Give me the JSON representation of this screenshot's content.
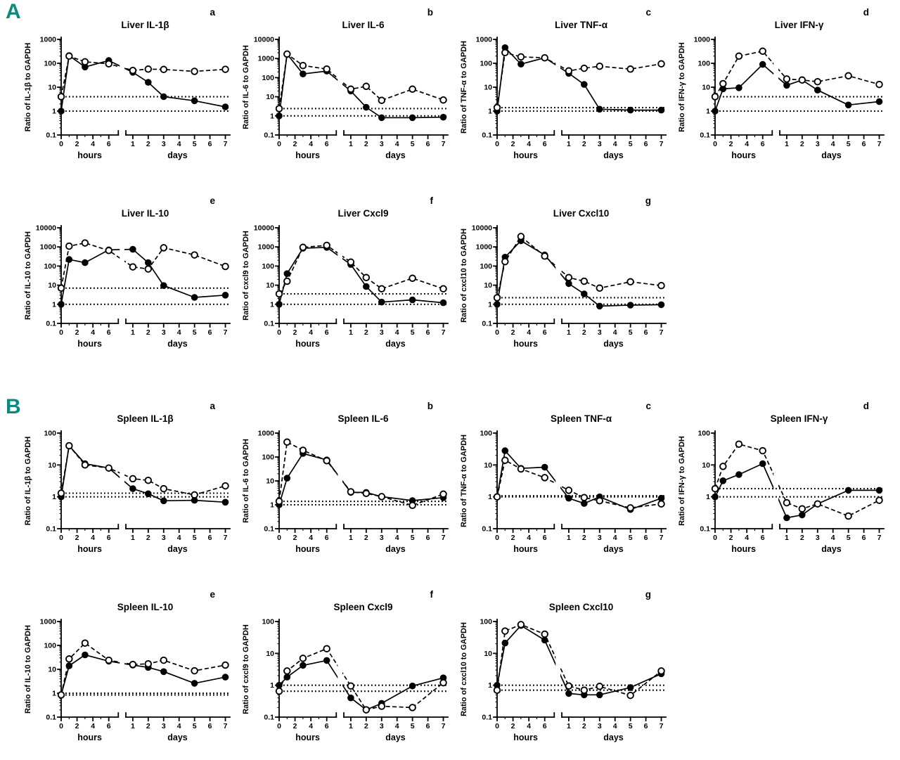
{
  "accent_color": "#0d8a80",
  "panels": [
    {
      "label": "A"
    },
    {
      "label": "B"
    }
  ],
  "chart_data": [
    {
      "type": "line",
      "panel": "A",
      "letter": "a",
      "title": "Liver IL-1β",
      "ylabel": "Ratio of IL-1β to GAPDH",
      "xlabel_hours": "hours",
      "xlabel_days": "days",
      "x_hours": [
        0,
        1,
        3,
        6
      ],
      "x_days": [
        1,
        2,
        3,
        5,
        7
      ],
      "hours_ticks": [
        0,
        2,
        4,
        6
      ],
      "days_ticks": [
        1,
        2,
        3,
        4,
        5,
        6,
        7
      ],
      "ylim": [
        0.1,
        1000
      ],
      "yticks": [
        "0.1",
        "1",
        "10",
        "100",
        "1000"
      ],
      "dotted_lines": [
        1,
        4
      ],
      "series": [
        {
          "marker": "filled-circle",
          "line": "solid",
          "hours": [
            1,
            210,
            70,
            130
          ],
          "days": [
            42,
            16,
            4,
            2.7,
            1.5
          ]
        },
        {
          "marker": "open-circle",
          "line": "dashed",
          "hours": [
            4,
            200,
            115,
            95
          ],
          "days": [
            50,
            57,
            55,
            46,
            56
          ]
        }
      ]
    },
    {
      "type": "line",
      "panel": "A",
      "letter": "b",
      "title": "Liver IL-6",
      "ylabel": "Ratio of IL-6 to GAPDH",
      "xlabel_hours": "hours",
      "xlabel_days": "days",
      "x_hours": [
        0,
        1,
        3,
        6
      ],
      "x_days": [
        1,
        2,
        3,
        5,
        7
      ],
      "hours_ticks": [
        0,
        2,
        4,
        6
      ],
      "days_ticks": [
        1,
        2,
        3,
        4,
        5,
        6,
        7
      ],
      "ylim": [
        0.1,
        10000
      ],
      "yticks": [
        "0.1",
        "1",
        "10",
        "100",
        "1000",
        "10000"
      ],
      "dotted_lines": [
        1,
        2.4
      ],
      "series": [
        {
          "marker": "filled-circle",
          "line": "solid",
          "hours": [
            1,
            1700,
            155,
            220
          ],
          "days": [
            20,
            2.8,
            0.8,
            0.8,
            0.85
          ]
        },
        {
          "marker": "open-circle",
          "line": "dashed",
          "hours": [
            2.4,
            1700,
            430,
            280
          ],
          "days": [
            25,
            35,
            6.5,
            25,
            6.8
          ]
        }
      ]
    },
    {
      "type": "line",
      "panel": "A",
      "letter": "c",
      "title": "Liver TNF-α",
      "ylabel": "Ratio of TNF-α to GAPDH",
      "xlabel_hours": "hours",
      "xlabel_days": "days",
      "x_hours": [
        0,
        1,
        3,
        6
      ],
      "x_days": [
        1,
        2,
        3,
        5,
        7
      ],
      "hours_ticks": [
        0,
        2,
        4,
        6
      ],
      "days_ticks": [
        1,
        2,
        3,
        4,
        5,
        6,
        7
      ],
      "ylim": [
        0.1,
        1000
      ],
      "yticks": [
        "0.1",
        "1",
        "10",
        "100",
        "1000"
      ],
      "dotted_lines": [
        1,
        1.4
      ],
      "series": [
        {
          "marker": "filled-circle",
          "line": "solid",
          "hours": [
            1,
            450,
            92,
            170
          ],
          "days": [
            38,
            13,
            1.2,
            1.1,
            1.1
          ]
        },
        {
          "marker": "open-circle",
          "line": "dashed",
          "hours": [
            1.4,
            280,
            185,
            170
          ],
          "days": [
            48,
            62,
            75,
            57,
            95
          ]
        }
      ]
    },
    {
      "type": "line",
      "panel": "A",
      "letter": "d",
      "title": "Liver IFN-γ",
      "ylabel": "Ratio of IFN-γ to GAPDH",
      "xlabel_hours": "hours",
      "xlabel_days": "days",
      "x_hours": [
        0,
        1,
        3,
        6
      ],
      "x_days": [
        1,
        2,
        3,
        5,
        7
      ],
      "hours_ticks": [
        0,
        2,
        4,
        6
      ],
      "days_ticks": [
        1,
        2,
        3,
        4,
        5,
        6,
        7
      ],
      "ylim": [
        0.1,
        1000
      ],
      "yticks": [
        "0.1",
        "1",
        "10",
        "100",
        "1000"
      ],
      "dotted_lines": [
        1,
        4
      ],
      "series": [
        {
          "marker": "filled-circle",
          "line": "solid",
          "hours": [
            1,
            8.5,
            9.5,
            90
          ],
          "days": [
            12,
            20,
            7.5,
            1.8,
            2.5
          ]
        },
        {
          "marker": "open-circle",
          "line": "dashed",
          "hours": [
            4,
            14,
            200,
            320
          ],
          "days": [
            22,
            20,
            17,
            30,
            13
          ]
        }
      ]
    },
    {
      "type": "line",
      "panel": "A",
      "letter": "e",
      "title": "Liver IL-10",
      "ylabel": "Ratio of IL-10 to GAPDH",
      "xlabel_hours": "hours",
      "xlabel_days": "days",
      "x_hours": [
        0,
        1,
        3,
        6
      ],
      "x_days": [
        1,
        2,
        3,
        5,
        7
      ],
      "hours_ticks": [
        0,
        2,
        4,
        6
      ],
      "days_ticks": [
        1,
        2,
        3,
        4,
        5,
        6,
        7
      ],
      "ylim": [
        0.1,
        10000
      ],
      "yticks": [
        "0.1",
        "1",
        "10",
        "100",
        "1000",
        "10000"
      ],
      "dotted_lines": [
        1,
        7
      ],
      "series": [
        {
          "marker": "filled-circle",
          "line": "solid",
          "hours": [
            1,
            220,
            150,
            700
          ],
          "days": [
            750,
            150,
            9.5,
            2.3,
            3
          ]
        },
        {
          "marker": "open-circle",
          "line": "dashed",
          "hours": [
            7,
            1100,
            1600,
            650
          ],
          "days": [
            90,
            70,
            900,
            380,
            95
          ]
        }
      ]
    },
    {
      "type": "line",
      "panel": "A",
      "letter": "f",
      "title": "Liver Cxcl9",
      "ylabel": "Ratio of cxcl9 to GAPDH",
      "xlabel_hours": "hours",
      "xlabel_days": "days",
      "x_hours": [
        0,
        1,
        3,
        6
      ],
      "x_days": [
        1,
        2,
        3,
        5,
        7
      ],
      "hours_ticks": [
        0,
        2,
        4,
        6
      ],
      "days_ticks": [
        1,
        2,
        3,
        4,
        5,
        6,
        7
      ],
      "ylim": [
        0.1,
        10000
      ],
      "yticks": [
        "0.1",
        "1",
        "10",
        "100",
        "1000",
        "10000"
      ],
      "dotted_lines": [
        1,
        3.5
      ],
      "series": [
        {
          "marker": "filled-circle",
          "line": "solid",
          "hours": [
            1,
            40,
            850,
            950
          ],
          "days": [
            120,
            8.5,
            1.3,
            1.7,
            1.2
          ]
        },
        {
          "marker": "open-circle",
          "line": "dashed",
          "hours": [
            3.5,
            16,
            950,
            1200
          ],
          "days": [
            160,
            25,
            6.5,
            23,
            6.5
          ]
        }
      ]
    },
    {
      "type": "line",
      "panel": "A",
      "letter": "g",
      "title": "Liver Cxcl10",
      "ylabel": "Ratio of cxcl10 to GAPDH",
      "xlabel_hours": "hours",
      "xlabel_days": "days",
      "x_hours": [
        0,
        1,
        3,
        6
      ],
      "x_days": [
        1,
        2,
        3,
        5,
        7
      ],
      "hours_ticks": [
        0,
        2,
        4,
        6
      ],
      "days_ticks": [
        1,
        2,
        3,
        4,
        5,
        6,
        7
      ],
      "ylim": [
        0.1,
        10000
      ],
      "yticks": [
        "0.1",
        "1",
        "10",
        "100",
        "1000",
        "10000"
      ],
      "dotted_lines": [
        1,
        2.2
      ],
      "series": [
        {
          "marker": "filled-circle",
          "line": "solid",
          "hours": [
            1,
            290,
            2100,
            380
          ],
          "days": [
            12,
            3.5,
            0.8,
            0.9,
            0.95
          ]
        },
        {
          "marker": "open-circle",
          "line": "dashed",
          "hours": [
            2.2,
            170,
            3500,
            330
          ],
          "days": [
            25,
            16,
            7,
            15,
            9.5
          ]
        }
      ]
    },
    {
      "type": "line",
      "panel": "B",
      "letter": "a",
      "title": "Spleen IL-1β",
      "ylabel": "Ratio of IL-1β to GAPDH",
      "xlabel_hours": "hours",
      "xlabel_days": "days",
      "x_hours": [
        0,
        1,
        3,
        6
      ],
      "x_days": [
        1,
        2,
        3,
        5,
        7
      ],
      "hours_ticks": [
        0,
        2,
        4,
        6
      ],
      "days_ticks": [
        1,
        2,
        3,
        4,
        5,
        6,
        7
      ],
      "ylim": [
        0.1,
        100
      ],
      "yticks": [
        "0.1",
        "1",
        "10",
        "100"
      ],
      "dotted_lines": [
        1,
        1.3
      ],
      "series": [
        {
          "marker": "filled-circle",
          "line": "solid",
          "hours": [
            1,
            40,
            11,
            8
          ],
          "days": [
            1.8,
            1.25,
            0.75,
            0.78,
            0.68
          ]
        },
        {
          "marker": "open-circle",
          "line": "dashed",
          "hours": [
            1.3,
            40,
            10,
            8
          ],
          "days": [
            3.7,
            3.3,
            1.8,
            1.15,
            2.2
          ]
        }
      ]
    },
    {
      "type": "line",
      "panel": "B",
      "letter": "b",
      "title": "Spleen IL-6",
      "ylabel": "Ratio of IL-6 to GAPDH",
      "xlabel_hours": "hours",
      "xlabel_days": "days",
      "x_hours": [
        0,
        1,
        3,
        6
      ],
      "x_days": [
        1,
        2,
        3,
        5,
        7
      ],
      "hours_ticks": [
        0,
        2,
        4,
        6
      ],
      "days_ticks": [
        1,
        2,
        3,
        4,
        5,
        6,
        7
      ],
      "ylim": [
        0.1,
        1000
      ],
      "yticks": [
        "0.1",
        "1",
        "10",
        "100",
        "1000"
      ],
      "dotted_lines": [
        1,
        1.4
      ],
      "series": [
        {
          "marker": "filled-circle",
          "line": "solid",
          "hours": [
            1,
            13,
            140,
            75
          ],
          "days": [
            3.3,
            3.3,
            2.2,
            1.5,
            2
          ]
        },
        {
          "marker": "open-circle",
          "line": "dashed",
          "hours": [
            1.4,
            420,
            190,
            70
          ],
          "days": [
            3.5,
            3,
            2.2,
            0.95,
            2.8
          ]
        }
      ]
    },
    {
      "type": "line",
      "panel": "B",
      "letter": "c",
      "title": "Spleen TNF-α",
      "ylabel": "Ratio of TNF-α to GAPDH",
      "xlabel_hours": "hours",
      "xlabel_days": "days",
      "x_hours": [
        0,
        1,
        3,
        6
      ],
      "x_days": [
        1,
        2,
        3,
        5,
        7
      ],
      "hours_ticks": [
        0,
        2,
        4,
        6
      ],
      "days_ticks": [
        1,
        2,
        3,
        4,
        5,
        6,
        7
      ],
      "ylim": [
        0.1,
        100
      ],
      "yticks": [
        "0.1",
        "1",
        "10",
        "100"
      ],
      "dotted_lines": [
        1,
        1.08
      ],
      "series": [
        {
          "marker": "filled-circle",
          "line": "solid",
          "hours": [
            1,
            28,
            7.8,
            8.5
          ],
          "days": [
            0.9,
            0.62,
            1.0,
            0.4,
            0.9
          ]
        },
        {
          "marker": "open-circle",
          "line": "dashed",
          "hours": [
            1,
            14,
            7.5,
            4
          ],
          "days": [
            1.6,
            0.95,
            0.75,
            0.45,
            0.6
          ]
        }
      ]
    },
    {
      "type": "line",
      "panel": "B",
      "letter": "d",
      "title": "Spleen IFN-γ",
      "ylabel": "Ratio of IFN-γ to GAPDH",
      "xlabel_hours": "hours",
      "xlabel_days": "days",
      "x_hours": [
        0,
        1,
        3,
        6
      ],
      "x_days": [
        1,
        2,
        3,
        5,
        7
      ],
      "hours_ticks": [
        0,
        2,
        4,
        6
      ],
      "days_ticks": [
        1,
        2,
        3,
        4,
        5,
        6,
        7
      ],
      "ylim": [
        0.1,
        100
      ],
      "yticks": [
        "0.1",
        "1",
        "10",
        "100"
      ],
      "dotted_lines": [
        1,
        1.8
      ],
      "series": [
        {
          "marker": "filled-circle",
          "line": "solid",
          "hours": [
            1,
            3.2,
            5,
            11
          ],
          "days": [
            0.22,
            0.27,
            0.6,
            1.6,
            1.6
          ]
        },
        {
          "marker": "open-circle",
          "line": "dashed",
          "hours": [
            1.8,
            9,
            45,
            28
          ],
          "days": [
            0.65,
            0.42,
            0.6,
            0.25,
            0.78
          ]
        }
      ]
    },
    {
      "type": "line",
      "panel": "B",
      "letter": "e",
      "title": "Spleen IL-10",
      "ylabel": "Ratio of IL-10 to GAPDH",
      "xlabel_hours": "hours",
      "xlabel_days": "days",
      "x_hours": [
        0,
        1,
        3,
        6
      ],
      "x_days": [
        1,
        2,
        3,
        5,
        7
      ],
      "hours_ticks": [
        0,
        2,
        4,
        6
      ],
      "days_ticks": [
        1,
        2,
        3,
        4,
        5,
        6,
        7
      ],
      "ylim": [
        0.1,
        1000
      ],
      "yticks": [
        "0.1",
        "1",
        "10",
        "100",
        "1000"
      ],
      "dotted_lines": [
        0.85,
        1
      ],
      "series": [
        {
          "marker": "filled-circle",
          "line": "solid",
          "hours": [
            0.85,
            14,
            40,
            22
          ],
          "days": [
            15,
            12,
            8,
            2.6,
            4.7
          ]
        },
        {
          "marker": "open-circle",
          "line": "dashed",
          "hours": [
            0.85,
            27,
            125,
            24
          ],
          "days": [
            16,
            17,
            24,
            8.7,
            15
          ]
        }
      ]
    },
    {
      "type": "line",
      "panel": "B",
      "letter": "f",
      "title": "Spleen Cxcl9",
      "ylabel": "Ratio of cxcl9 to GAPDH",
      "xlabel_hours": "hours",
      "xlabel_days": "days",
      "x_hours": [
        0,
        1,
        3,
        6
      ],
      "x_days": [
        1,
        2,
        3,
        5,
        7
      ],
      "hours_ticks": [
        0,
        2,
        4,
        6
      ],
      "days_ticks": [
        1,
        2,
        3,
        4,
        5,
        6,
        7
      ],
      "ylim": [
        0.1,
        100
      ],
      "yticks": [
        "0.1",
        "1",
        "10",
        "100"
      ],
      "dotted_lines": [
        0.65,
        1
      ],
      "series": [
        {
          "marker": "filled-circle",
          "line": "solid",
          "hours": [
            1,
            1.8,
            4.2,
            6
          ],
          "days": [
            0.4,
            0.17,
            0.27,
            0.95,
            1.7
          ]
        },
        {
          "marker": "open-circle",
          "line": "dashed",
          "hours": [
            0.65,
            2.8,
            7,
            14
          ],
          "days": [
            0.95,
            0.17,
            0.22,
            0.2,
            1.2
          ]
        }
      ]
    },
    {
      "type": "line",
      "panel": "B",
      "letter": "g",
      "title": "Spleen Cxcl10",
      "ylabel": "Ratio of cxcl10 to GAPDH",
      "xlabel_hours": "hours",
      "xlabel_days": "days",
      "x_hours": [
        0,
        1,
        3,
        6
      ],
      "x_days": [
        1,
        2,
        3,
        5,
        7
      ],
      "hours_ticks": [
        0,
        2,
        4,
        6
      ],
      "days_ticks": [
        1,
        2,
        3,
        4,
        5,
        6,
        7
      ],
      "ylim": [
        0.1,
        100
      ],
      "yticks": [
        "0.1",
        "1",
        "10",
        "100"
      ],
      "dotted_lines": [
        0.7,
        1
      ],
      "series": [
        {
          "marker": "filled-circle",
          "line": "solid",
          "hours": [
            1,
            21,
            75,
            26
          ],
          "days": [
            0.55,
            0.5,
            0.5,
            0.85,
            2.3
          ]
        },
        {
          "marker": "open-circle",
          "line": "dashed",
          "hours": [
            0.7,
            50,
            80,
            40
          ],
          "days": [
            0.95,
            0.7,
            0.92,
            0.48,
            2.8
          ]
        }
      ]
    }
  ]
}
